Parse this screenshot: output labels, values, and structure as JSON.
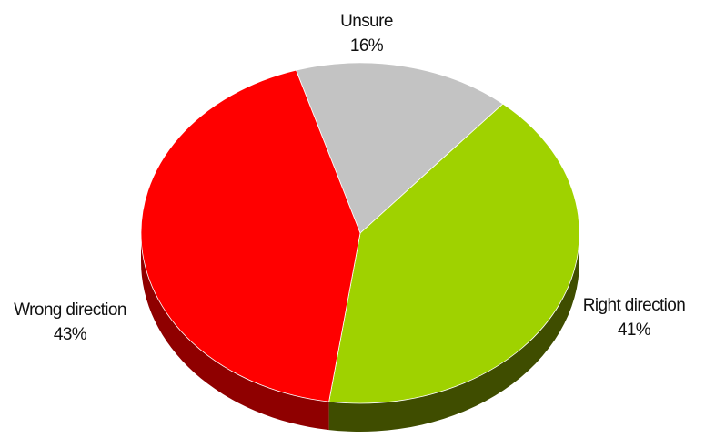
{
  "chart_data": {
    "type": "pie",
    "title": "",
    "slices": [
      {
        "label": "Unsure",
        "value": 16,
        "value_label": "16%",
        "color": "#c3c3c3",
        "side_color": "#8a8a8a"
      },
      {
        "label": "Right direction",
        "value": 41,
        "value_label": "41%",
        "color": "#9fd200",
        "side_color": "#3f4d00"
      },
      {
        "label": "Wrong direction",
        "value": 43,
        "value_label": "43%",
        "color": "#ff0000",
        "side_color": "#8f0000"
      }
    ],
    "style": "3d-tilted",
    "legend": "none",
    "labels": "outside"
  }
}
